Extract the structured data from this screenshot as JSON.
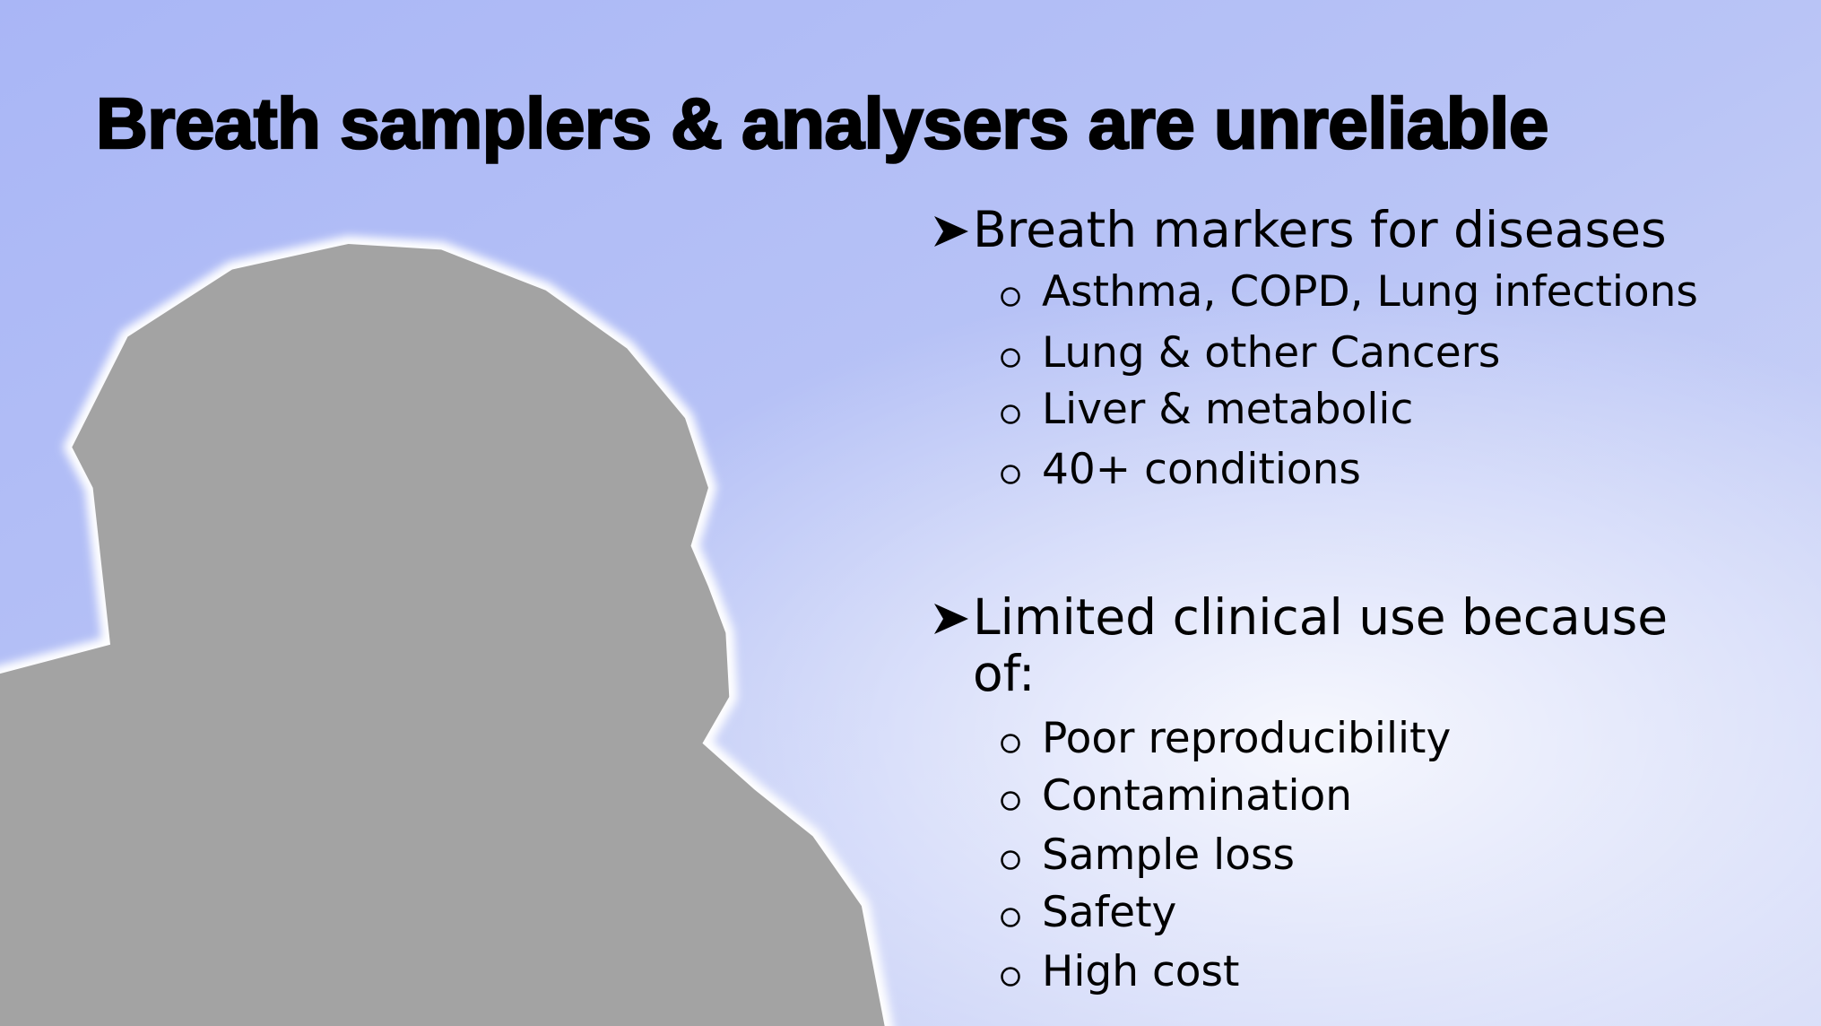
{
  "title": "Breath samplers & analysers are unreliable",
  "sections": [
    {
      "heading": "Breath markers for diseases",
      "items": [
        "Asthma, COPD, Lung infections",
        "Lung & other Cancers",
        "Liver & metabolic",
        "40+ conditions"
      ]
    },
    {
      "heading": "Limited clinical use because of:",
      "items": [
        "Poor reproducibility",
        "Contamination",
        "Sample loss",
        "Safety",
        "High cost"
      ]
    }
  ]
}
